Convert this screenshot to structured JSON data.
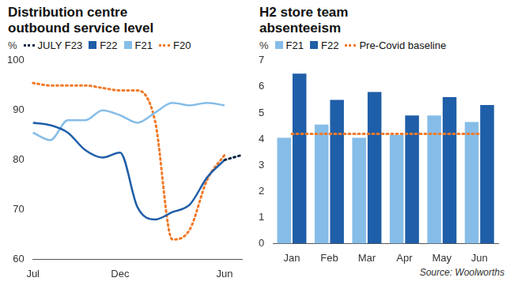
{
  "chart_data": [
    {
      "type": "line",
      "title": "Distribution centre outbound service level",
      "y_label": "%",
      "categories": [
        "Jul",
        null,
        null,
        null,
        null,
        "Dec",
        null,
        null,
        null,
        null,
        null,
        "Jun",
        null
      ],
      "series": [
        {
          "name": "JULY F23",
          "color": "#0b2545",
          "line_style": "dotted",
          "values": [
            null,
            null,
            null,
            null,
            null,
            null,
            null,
            null,
            null,
            null,
            null,
            80,
            81
          ]
        },
        {
          "name": "F22",
          "color": "#1f5ea8",
          "line_style": "solid",
          "values": [
            87.5,
            87,
            85.5,
            82,
            80.5,
            81.5,
            70.5,
            68,
            69.5,
            71,
            76.5,
            80,
            null
          ]
        },
        {
          "name": "F21",
          "color": "#86bde8",
          "line_style": "solid",
          "values": [
            85.5,
            84,
            88,
            88,
            90,
            89,
            87.5,
            89.5,
            91.5,
            91,
            91.5,
            91,
            null
          ]
        },
        {
          "name": "F20",
          "color": "#f07a28",
          "line_style": "dotted",
          "values": [
            95.5,
            95,
            95,
            95,
            94.5,
            94,
            94,
            88,
            64,
            66,
            76,
            81,
            null
          ]
        }
      ],
      "ylim": [
        60,
        100
      ],
      "yticks": [
        60,
        70,
        80,
        90,
        100
      ],
      "grid": false
    },
    {
      "type": "bar",
      "title": "H2 store team absenteeism",
      "y_label": "%",
      "categories": [
        "Jan",
        "Feb",
        "Mar",
        "Apr",
        "May",
        "Jun"
      ],
      "series": [
        {
          "name": "F21",
          "color": "#86bde8",
          "values": [
            4.05,
            4.55,
            4.05,
            4.15,
            4.9,
            4.65
          ]
        },
        {
          "name": "F22",
          "color": "#1f5ea8",
          "values": [
            6.5,
            5.5,
            5.8,
            4.9,
            5.6,
            5.3
          ]
        },
        {
          "name": "Pre-Covid baseline",
          "type": "line",
          "line_style": "dotted",
          "color": "#f07a28",
          "values": [
            4.2,
            4.2,
            4.2,
            4.2,
            4.2,
            4.2
          ]
        }
      ],
      "ylim": [
        0,
        7
      ],
      "yticks": [
        0,
        1,
        2,
        3,
        4,
        5,
        6,
        7
      ],
      "grid": false,
      "source": "Source: Woolworths"
    }
  ]
}
